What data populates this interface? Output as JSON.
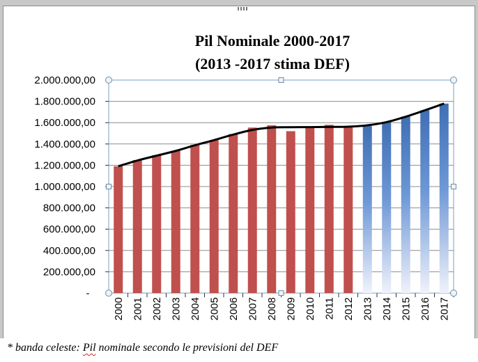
{
  "window": {
    "grip_icon": "resize-grip-icon"
  },
  "chart_data": {
    "type": "bar",
    "title": "Pil Nominale 2000-2017",
    "subtitle": "(2013 -2017 stima DEF)",
    "categories": [
      "2000",
      "2001",
      "2002",
      "2003",
      "2004",
      "2005",
      "2006",
      "2007",
      "2008",
      "2009",
      "2010",
      "2011",
      "2012",
      "2013",
      "2014",
      "2015",
      "2016",
      "2017"
    ],
    "series": [
      {
        "name": "Pil nominale",
        "color": "#c0504d",
        "values": [
          1191000,
          1249000,
          1295000,
          1335000,
          1391000,
          1436000,
          1493000,
          1554000,
          1575000,
          1520000,
          1552000,
          1580000,
          1567000,
          null,
          null,
          null,
          null,
          null
        ]
      },
      {
        "name": "Pil nominale secondo le previsioni del DEF",
        "color": "#4f81bd",
        "values": [
          null,
          null,
          null,
          null,
          null,
          null,
          null,
          null,
          null,
          null,
          null,
          null,
          null,
          1568000,
          1605000,
          1656000,
          1716000,
          1779000
        ]
      }
    ],
    "trend_line": [
      1191000,
      1245000,
      1290000,
      1335000,
      1388000,
      1436000,
      1488000,
      1532000,
      1554000,
      1557000,
      1558000,
      1560000,
      1562000,
      1575000,
      1605000,
      1656000,
      1716000,
      1779000
    ],
    "yticks": [
      "-",
      "200.000,00",
      "400.000,00",
      "600.000,00",
      "800.000,00",
      "1.000.000,00",
      "1.200.000,00",
      "1.400.000,00",
      "1.600.000,00",
      "1.800.000,00",
      "2.000.000,00"
    ],
    "ylim": [
      0,
      2000000
    ],
    "grid": true,
    "xlabel": "",
    "ylabel": ""
  },
  "footnote": {
    "prefix": "* banda celeste: ",
    "term": "Pil",
    "rest": " nominale secondo le previsioni del DEF"
  }
}
